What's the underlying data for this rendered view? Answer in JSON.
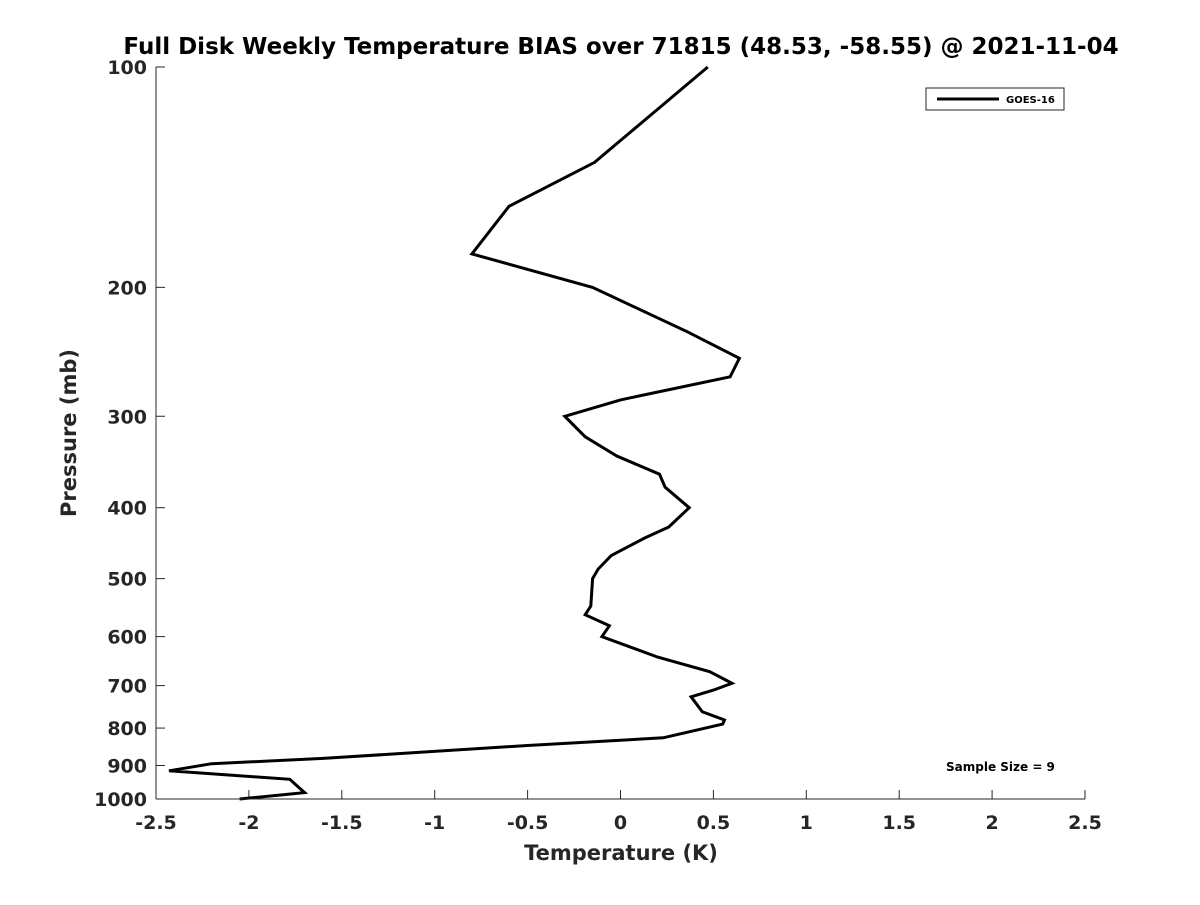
{
  "chart_data": {
    "type": "line",
    "title": "Full Disk Weekly Temperature BIAS over 71815 (48.53, -58.55) @ 2021-11-04",
    "xlabel": "Temperature (K)",
    "ylabel": "Pressure (mb)",
    "xlim": [
      -2.5,
      2.5
    ],
    "ylim": [
      100,
      1000
    ],
    "y_scale": "log",
    "y_reversed": true,
    "grid": false,
    "legend_position": "top-right",
    "x_ticks": [
      "-2.5",
      "-2",
      "-1.5",
      "-1",
      "-0.5",
      "0",
      "0.5",
      "1",
      "1.5",
      "2",
      "2.5"
    ],
    "y_ticks": [
      "100",
      "200",
      "300",
      "400",
      "500",
      "600",
      "700",
      "800",
      "900",
      "1000"
    ],
    "series": [
      {
        "name": "GOES-16",
        "color": "#000000",
        "points": [
          {
            "x": 0.47,
            "y": 100
          },
          {
            "x": -0.14,
            "y": 135
          },
          {
            "x": -0.6,
            "y": 155
          },
          {
            "x": -0.8,
            "y": 180
          },
          {
            "x": -0.15,
            "y": 200
          },
          {
            "x": 0.36,
            "y": 230
          },
          {
            "x": 0.64,
            "y": 250
          },
          {
            "x": 0.59,
            "y": 265
          },
          {
            "x": 0.0,
            "y": 285
          },
          {
            "x": -0.3,
            "y": 300
          },
          {
            "x": -0.19,
            "y": 320
          },
          {
            "x": -0.02,
            "y": 340
          },
          {
            "x": 0.21,
            "y": 360
          },
          {
            "x": 0.24,
            "y": 375
          },
          {
            "x": 0.37,
            "y": 400
          },
          {
            "x": 0.26,
            "y": 425
          },
          {
            "x": 0.13,
            "y": 440
          },
          {
            "x": -0.05,
            "y": 465
          },
          {
            "x": -0.12,
            "y": 485
          },
          {
            "x": -0.15,
            "y": 500
          },
          {
            "x": -0.16,
            "y": 545
          },
          {
            "x": -0.19,
            "y": 560
          },
          {
            "x": -0.06,
            "y": 580
          },
          {
            "x": -0.1,
            "y": 600
          },
          {
            "x": 0.2,
            "y": 640
          },
          {
            "x": 0.48,
            "y": 670
          },
          {
            "x": 0.6,
            "y": 695
          },
          {
            "x": 0.5,
            "y": 710
          },
          {
            "x": 0.38,
            "y": 725
          },
          {
            "x": 0.44,
            "y": 760
          },
          {
            "x": 0.56,
            "y": 780
          },
          {
            "x": 0.55,
            "y": 790
          },
          {
            "x": 0.23,
            "y": 825
          },
          {
            "x": -0.5,
            "y": 845
          },
          {
            "x": -1.6,
            "y": 880
          },
          {
            "x": -2.2,
            "y": 895
          },
          {
            "x": -2.43,
            "y": 915
          },
          {
            "x": -1.78,
            "y": 940
          },
          {
            "x": -1.74,
            "y": 960
          },
          {
            "x": -1.7,
            "y": 980
          },
          {
            "x": -2.05,
            "y": 1000
          }
        ]
      }
    ],
    "annotation": "Sample Size = 9"
  }
}
